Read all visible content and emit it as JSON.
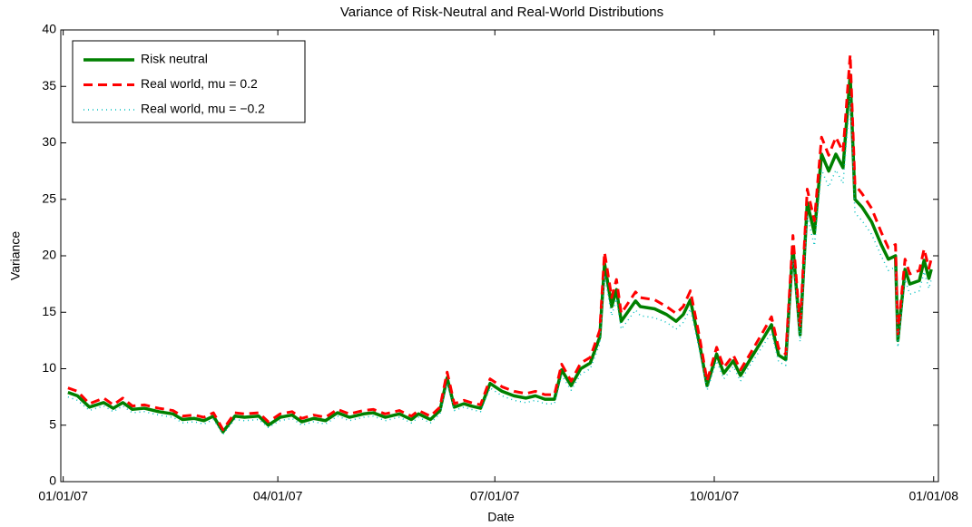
{
  "chart_data": {
    "type": "line",
    "title": "Variance of Risk-Neutral and Real-World Distributions",
    "x_label": "Date",
    "y_label": "Variance",
    "x": [
      "01/03/07",
      "01/07/07",
      "01/12/07",
      "01/18/07",
      "01/22/07",
      "01/26/07",
      "01/30/07",
      "02/04/07",
      "02/10/07",
      "02/16/07",
      "02/20/07",
      "02/25/07",
      "03/01/07",
      "03/05/07",
      "03/09/07",
      "03/14/07",
      "03/18/07",
      "03/24/07",
      "03/28/07",
      "04/02/07",
      "04/07/07",
      "04/11/07",
      "04/16/07",
      "04/21/07",
      "04/26/07",
      "05/01/07",
      "05/07/07",
      "05/11/07",
      "05/16/07",
      "05/22/07",
      "05/27/07",
      "05/30/07",
      "06/04/07",
      "06/08/07",
      "06/11/07",
      "06/14/07",
      "06/18/07",
      "06/21/07",
      "06/25/07",
      "06/29/07",
      "07/04/07",
      "07/09/07",
      "07/14/07",
      "07/18/07",
      "07/22/07",
      "07/26/07",
      "07/29/07",
      "08/02/07",
      "08/06/07",
      "08/10/07",
      "08/14/07",
      "08/16/07",
      "08/19/07",
      "08/21/07",
      "08/23/07",
      "08/29/07",
      "08/31/07",
      "09/06/07",
      "09/11/07",
      "09/15/07",
      "09/18/07",
      "09/21/07",
      "09/25/07",
      "09/28/07",
      "10/02/07",
      "10/05/07",
      "10/09/07",
      "10/12/07",
      "10/16/07",
      "10/21/07",
      "10/25/07",
      "10/28/07",
      "10/31/07",
      "11/03/07",
      "11/06/07",
      "11/09/07",
      "11/12/07",
      "11/15/07",
      "11/18/07",
      "11/21/07",
      "11/24/07",
      "11/27/07",
      "11/29/07",
      "12/02/07",
      "12/06/07",
      "12/10/07",
      "12/13/07",
      "12/16/07",
      "12/17/07",
      "12/20/07",
      "12/22/07",
      "12/26/07",
      "12/28/07",
      "12/30/07",
      "12/31/07"
    ],
    "series": [
      {
        "name": "Risk neutral",
        "color": "#008000",
        "style": "solid",
        "values": [
          7.9,
          7.6,
          6.6,
          7.0,
          6.5,
          7.0,
          6.4,
          6.5,
          6.2,
          6.0,
          5.5,
          5.6,
          5.4,
          5.8,
          4.4,
          5.8,
          5.7,
          5.8,
          5.0,
          5.7,
          5.9,
          5.3,
          5.6,
          5.4,
          6.1,
          5.7,
          6.0,
          6.1,
          5.7,
          6.0,
          5.5,
          6.0,
          5.5,
          6.3,
          9.2,
          6.6,
          6.9,
          6.7,
          6.5,
          8.7,
          8.0,
          7.6,
          7.4,
          7.6,
          7.3,
          7.3,
          9.9,
          8.5,
          10.0,
          10.5,
          12.8,
          19.3,
          15.5,
          17.0,
          14.2,
          16.0,
          15.5,
          15.3,
          14.8,
          14.2,
          14.8,
          16.1,
          12.0,
          8.5,
          11.3,
          9.6,
          10.7,
          9.4,
          10.8,
          12.5,
          13.9,
          11.2,
          10.8,
          20.8,
          13.0,
          24.7,
          22.0,
          29.0,
          27.5,
          29.0,
          27.8,
          36.0,
          25.0,
          24.3,
          23.0,
          21.0,
          19.7,
          20.0,
          12.5,
          18.8,
          17.5,
          17.8,
          19.6,
          18.0,
          18.8
        ]
      },
      {
        "name": "Real world, mu = 0.2",
        "color": "#ff0000",
        "style": "dashed",
        "values": [
          8.3,
          8.0,
          6.9,
          7.4,
          6.8,
          7.4,
          6.7,
          6.8,
          6.5,
          6.3,
          5.8,
          5.9,
          5.7,
          6.1,
          4.6,
          6.1,
          6.0,
          6.1,
          5.3,
          6.0,
          6.2,
          5.6,
          5.9,
          5.7,
          6.4,
          6.0,
          6.3,
          6.4,
          6.0,
          6.3,
          5.8,
          6.3,
          5.8,
          6.6,
          9.7,
          6.9,
          7.2,
          7.0,
          6.8,
          9.1,
          8.4,
          8.0,
          7.8,
          8.0,
          7.7,
          7.7,
          10.4,
          8.9,
          10.5,
          11.0,
          13.4,
          20.3,
          16.3,
          17.9,
          14.9,
          16.8,
          16.3,
          16.1,
          15.5,
          14.9,
          15.5,
          16.9,
          12.6,
          8.9,
          11.9,
          10.1,
          11.2,
          9.9,
          11.3,
          13.1,
          14.6,
          11.8,
          11.3,
          21.8,
          13.7,
          25.9,
          23.1,
          30.5,
          28.9,
          30.5,
          29.2,
          37.8,
          26.3,
          25.5,
          24.2,
          22.1,
          20.7,
          21.0,
          13.1,
          19.7,
          18.4,
          18.7,
          20.6,
          18.9,
          19.7
        ]
      },
      {
        "name": "Real world, mu = −0.2",
        "color": "#00bfbf",
        "style": "dotted",
        "values": [
          7.5,
          7.2,
          6.3,
          6.7,
          6.2,
          6.7,
          6.1,
          6.2,
          5.9,
          5.7,
          5.2,
          5.3,
          5.1,
          5.5,
          4.2,
          5.5,
          5.4,
          5.5,
          4.8,
          5.4,
          5.6,
          5.0,
          5.3,
          5.1,
          5.8,
          5.4,
          5.7,
          5.8,
          5.4,
          5.7,
          5.2,
          5.7,
          5.2,
          6.0,
          8.7,
          6.3,
          6.6,
          6.4,
          6.2,
          8.3,
          7.6,
          7.2,
          7.0,
          7.2,
          6.9,
          6.9,
          9.4,
          8.1,
          9.5,
          10.0,
          12.2,
          18.3,
          14.7,
          16.2,
          13.5,
          15.2,
          14.7,
          14.5,
          14.1,
          13.5,
          14.1,
          15.3,
          11.4,
          8.1,
          10.7,
          9.1,
          10.2,
          8.9,
          10.3,
          11.9,
          13.2,
          10.6,
          10.3,
          19.8,
          12.4,
          23.5,
          20.9,
          27.6,
          26.1,
          27.6,
          26.4,
          34.2,
          23.8,
          23.1,
          21.9,
          20.0,
          18.7,
          19.0,
          11.9,
          17.9,
          16.6,
          16.9,
          18.6,
          17.1,
          17.9
        ]
      }
    ],
    "xlim": [
      "12/31/06",
      "01/03/08"
    ],
    "xticks": [
      "01/01/07",
      "04/01/07",
      "07/01/07",
      "10/01/07",
      "01/01/08"
    ],
    "ylim": [
      0,
      40
    ],
    "yticks": [
      0,
      5,
      10,
      15,
      20,
      25,
      30,
      35,
      40
    ],
    "legend": "upper left"
  }
}
